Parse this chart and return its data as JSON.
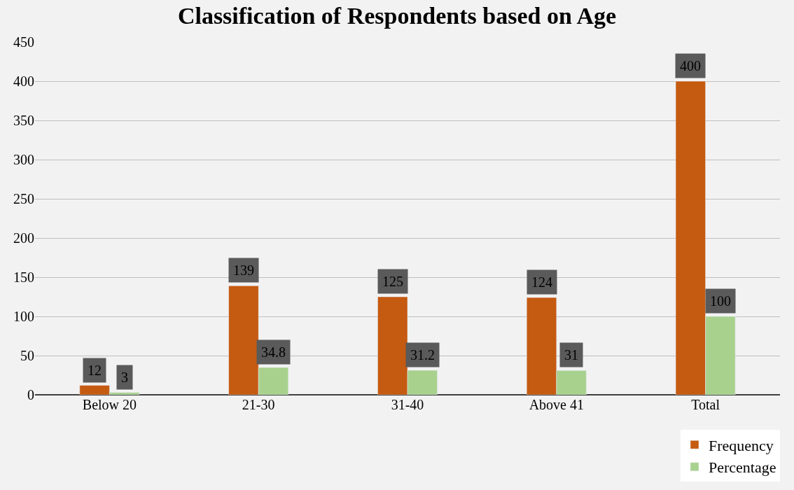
{
  "chart_data": {
    "type": "bar",
    "title": "Classification of Respondents based on Age",
    "categories": [
      "Below 20",
      "21-30",
      "31-40",
      "Above 41",
      "Total"
    ],
    "series": [
      {
        "name": "Frequency",
        "color": "#c55a11",
        "values": [
          12,
          139,
          125,
          124,
          400
        ]
      },
      {
        "name": "Percentage",
        "color": "#a9d18e",
        "values": [
          3,
          34.8,
          31.2,
          31,
          100
        ]
      }
    ],
    "ylim": [
      0,
      450
    ],
    "yticks": [
      0,
      50,
      100,
      150,
      200,
      250,
      300,
      350,
      400,
      450
    ],
    "grid": "y",
    "legend": "bottom right",
    "data_labels": true
  }
}
